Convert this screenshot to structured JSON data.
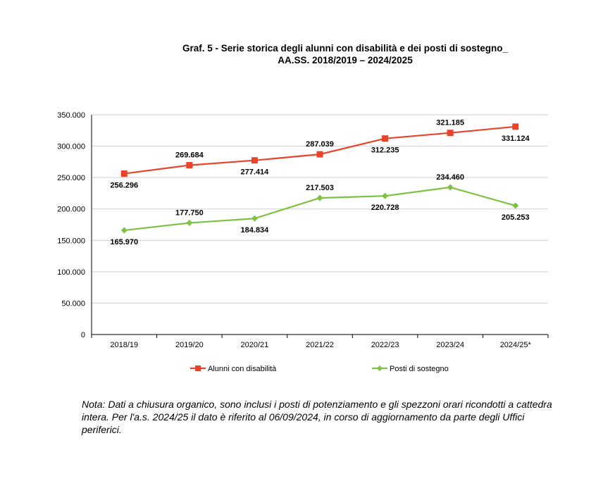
{
  "chart_data": {
    "type": "line",
    "title_line1": "Graf. 5 - Serie storica degli alunni con disabilità e dei posti di sostegno_",
    "title_line2": "AA.SS. 2018/2019 – 2024/2025",
    "categories": [
      "2018/19",
      "2019/20",
      "2020/21",
      "2021/22",
      "2022/23",
      "2023/24",
      "2024/25*"
    ],
    "ylim": [
      0,
      350000
    ],
    "yticks": [
      0,
      50000,
      100000,
      150000,
      200000,
      250000,
      300000,
      350000
    ],
    "ytick_labels": [
      "0",
      "50.000",
      "100.000",
      "150.000",
      "200.000",
      "250.000",
      "300.000",
      "350.000"
    ],
    "grid": true,
    "legend_position": "bottom",
    "series": [
      {
        "name": "Alunni con disabilità",
        "color": "#E8442A",
        "marker": "square",
        "values": [
          256296,
          269684,
          277414,
          287039,
          312235,
          321185,
          331124
        ],
        "labels": [
          "256.296",
          "269.684",
          "277.414",
          "287.039",
          "312.235",
          "321.185",
          "331.124"
        ]
      },
      {
        "name": "Posti di sostegno",
        "color": "#7DC242",
        "marker": "diamond",
        "values": [
          165970,
          177750,
          184834,
          217503,
          220728,
          234460,
          205253
        ],
        "labels": [
          "165.970",
          "177.750",
          "184.834",
          "217.503",
          "220.728",
          "234.460",
          "205.253"
        ]
      }
    ]
  },
  "note": "Nota: Dati a chiusura organico, sono inclusi i posti di potenziamento e gli spezzoni orari ricondotti a cattedra intera. Per l'a.s. 2024/25 il dato è riferito al 06/09/2024, in corso di aggiornamento da parte degli Uffici periferici."
}
